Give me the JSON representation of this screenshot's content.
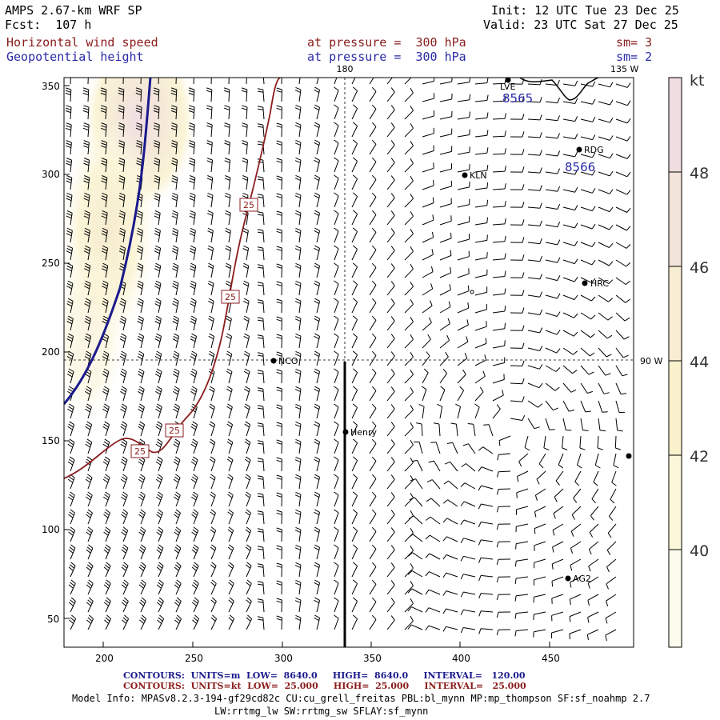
{
  "header": {
    "model": "AMPS 2.67-km WRF SP",
    "forecast": "Fcst:  107 h",
    "init": "Init: 12 UTC Tue 23 Dec 25",
    "valid": "Valid: 23 UTC Sat 27 Dec 25",
    "field1": "Horizontal wind speed",
    "field1_level": "at pressure =  300 hPa",
    "field1_smooth": "sm= 3",
    "field2": "Geopotential height",
    "field2_level": "at pressure =  300 hPa",
    "field2_smooth": "sm= 2"
  },
  "map": {
    "meridian_label": "180",
    "corner_label": "135 W",
    "parallel_label": "90 W",
    "height_labels": [
      "8565",
      "8566"
    ],
    "wind_contour_labels": [
      "25",
      "25",
      "25",
      "25"
    ],
    "stations": [
      "LVE",
      "RDG",
      "KLN",
      "HRC",
      "NCO",
      "Henry",
      "AG2"
    ],
    "x_ticks": [
      "200",
      "250",
      "300",
      "350",
      "400",
      "450"
    ],
    "y_ticks": [
      "350",
      "300",
      "250",
      "200",
      "150",
      "100",
      "50"
    ]
  },
  "colorbar": {
    "unit": "kt",
    "labels": [
      "48",
      "46",
      "44",
      "42",
      "40"
    ],
    "colors": [
      "#f0dde0",
      "#f2e4da",
      "#f7eed4",
      "#f9f2cd",
      "#fbf7da",
      "#fdfbed"
    ]
  },
  "footer": {
    "c1_label": "CONTOURS:",
    "c1_units": "UNITS=m",
    "c1_low": "LOW=  8640.0",
    "c1_high": "HIGH=  8640.0",
    "c1_interval": "INTERVAL=   120.00",
    "c2_label": "CONTOURS:",
    "c2_units": "UNITS=kt",
    "c2_low": "LOW=  25.000",
    "c2_high": "HIGH=  25.000",
    "c2_interval": "INTERVAL=   25.000",
    "model_info_1": "Model Info: MPASv8.2.3-194-gf29cd82c CU:cu_grell_freitas PBL:bl_mynn MP:mp_thompson SF:sf_noahmp 2.7",
    "model_info_2": "LW:rrtmg_lw SW:rrtmg_sw SFLAY:sf_mynn"
  }
}
